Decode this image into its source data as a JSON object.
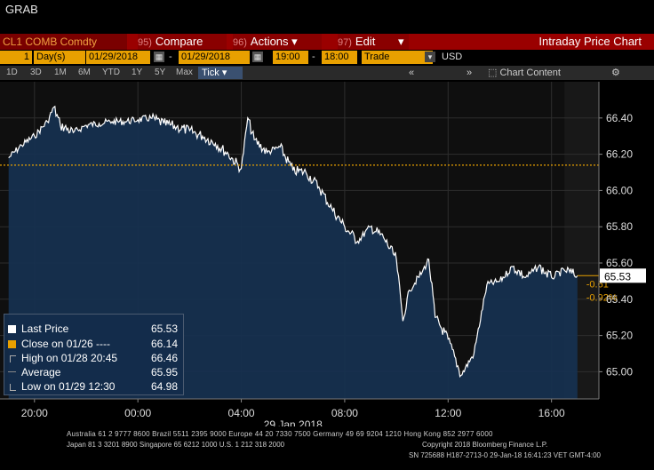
{
  "header": {
    "title": "GRAB"
  },
  "toolbar": {
    "ticker": "CL1 COMB Comdty",
    "compare_num": "95)",
    "compare_label": "Compare",
    "actions_num": "96)",
    "actions_label": "Actions",
    "edit_num": "97)",
    "edit_label": "Edit",
    "chart_title": "Intraday Price Chart"
  },
  "inputs": {
    "period_value": "1",
    "period_unit": "Day(s)",
    "start_date": "01/29/2018",
    "end_date": "01/29/2018",
    "start_time": "19:00",
    "end_time": "18:00",
    "market": "Trade",
    "currency": "USD"
  },
  "ranges": {
    "items": [
      "1D",
      "3D",
      "1M",
      "6M",
      "YTD",
      "1Y",
      "5Y",
      "Max"
    ],
    "selected_mode": "Tick",
    "chart_content": "Chart Content"
  },
  "colors": {
    "accent_red": "#9a0000",
    "input_orange": "#e8a000",
    "area_fill": "#16304f",
    "price_line": "#ffffff",
    "close_line": "#e8a000",
    "change_text": "#e8a000"
  },
  "legend": {
    "last_price_label": "Last Price",
    "last_price_value": "65.53",
    "close_label": "Close on 01/26 ----",
    "close_value": "66.14",
    "high_label": "High on 01/28 20:45",
    "high_value": "66.46",
    "average_label": "Average",
    "average_value": "65.95",
    "low_label": "Low on 01/29 12:30",
    "low_value": "64.98"
  },
  "annotations": {
    "last_value_tag": "65.53",
    "change_abs": "-0.61",
    "change_pct": "-0.92%"
  },
  "chart_data": {
    "type": "area",
    "x_tick_labels": [
      "20:00",
      "00:00",
      "04:00",
      "08:00",
      "12:00",
      "16:00"
    ],
    "x_date_label": "29 Jan 2018",
    "y_tick_labels": [
      "66.40",
      "66.20",
      "66.00",
      "65.80",
      "65.60",
      "65.40",
      "65.20",
      "65.00"
    ],
    "ylim": [
      64.85,
      66.6
    ],
    "previous_close": 66.14,
    "last_price": 65.53,
    "grid": true,
    "legend_position": "bottom-left",
    "series": [
      {
        "x": [
          "19:00",
          "19:30",
          "20:00",
          "20:30",
          "20:45",
          "21:00",
          "21:30",
          "22:00",
          "22:30",
          "23:00",
          "23:30",
          "00:00",
          "00:30",
          "01:00",
          "01:30",
          "02:00",
          "02:30",
          "03:00",
          "03:30",
          "04:00",
          "04:15",
          "04:30",
          "05:00",
          "05:30",
          "06:00",
          "06:30",
          "07:00",
          "07:30",
          "08:00",
          "08:30",
          "09:00",
          "09:30",
          "10:00",
          "10:15",
          "10:30",
          "11:00",
          "11:15",
          "11:30",
          "12:00",
          "12:30",
          "13:00",
          "13:30",
          "14:00",
          "14:30",
          "15:00",
          "15:30",
          "16:00",
          "16:30",
          "17:00"
        ],
        "values": [
          66.18,
          66.25,
          66.3,
          66.38,
          66.46,
          66.36,
          66.32,
          66.36,
          66.37,
          66.38,
          66.38,
          66.39,
          66.4,
          66.37,
          66.35,
          66.33,
          66.3,
          66.26,
          66.2,
          66.12,
          66.4,
          66.28,
          66.21,
          66.24,
          66.11,
          66.1,
          66.02,
          65.9,
          65.8,
          65.72,
          65.8,
          65.74,
          65.62,
          65.28,
          65.45,
          65.55,
          65.62,
          65.3,
          65.18,
          64.98,
          65.1,
          65.48,
          65.5,
          65.58,
          65.52,
          65.58,
          65.52,
          65.56,
          65.53
        ]
      }
    ]
  },
  "footer": {
    "line1": "Australia 61 2 9777 8600 Brazil 5511 2395 9000 Europe 44 20 7330 7500 Germany 49 69 9204 1210 Hong Kong 852 2977 6000",
    "line2": "Japan 81 3 3201 8900      Singapore 65 6212 1000       U.S. 1 212 318 2000",
    "line3": "Copyright 2018 Bloomberg Finance L.P.",
    "line4": "SN 725688 H187-2713-0 29-Jan-18 16:41:23 VET   GMT-4:00"
  }
}
